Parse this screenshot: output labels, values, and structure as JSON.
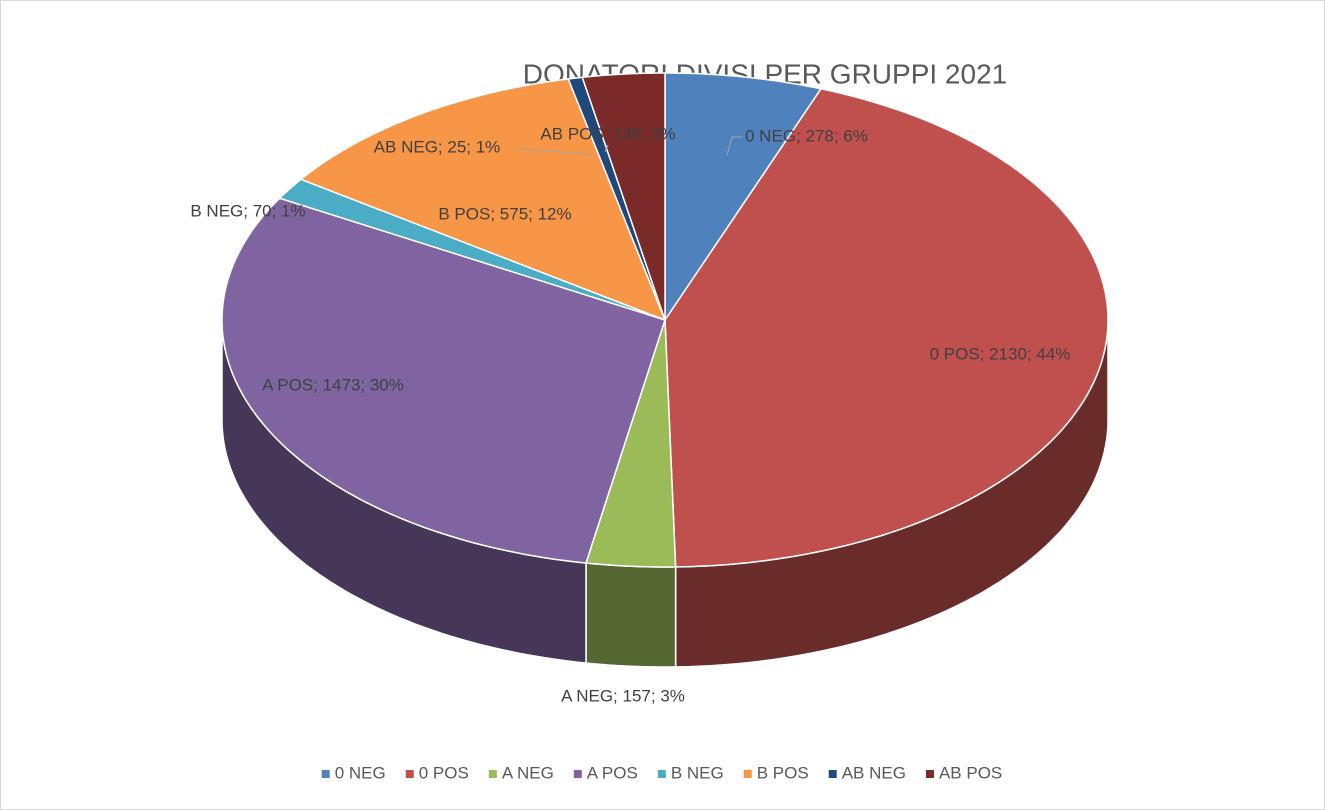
{
  "chart_data": {
    "type": "pie3d",
    "title": "DONATORI DIVISI PER GRUPPI 2021",
    "categories": [
      "0 NEG",
      "0 POS",
      "A NEG",
      "A POS",
      "B NEG",
      "B POS",
      "AB NEG",
      "AB POS"
    ],
    "values": [
      278,
      2130,
      157,
      1473,
      70,
      575,
      25,
      145
    ],
    "value_labels": [
      "0 NEG; 278; 6%",
      "0 POS; 2130; 44%",
      "A NEG; 157; 3%",
      "A POS; 1473; 30%",
      "B NEG; 70; 1%",
      "B POS; 575; 12%",
      "AB NEG; 25; 1%",
      "AB POS; 145; 3%"
    ],
    "colors": [
      "#4f81bd",
      "#c0504d",
      "#9bbb59",
      "#8064a2",
      "#4bacc6",
      "#f79646",
      "#1f497d",
      "#7b2a2a"
    ],
    "legend": "bottom"
  }
}
